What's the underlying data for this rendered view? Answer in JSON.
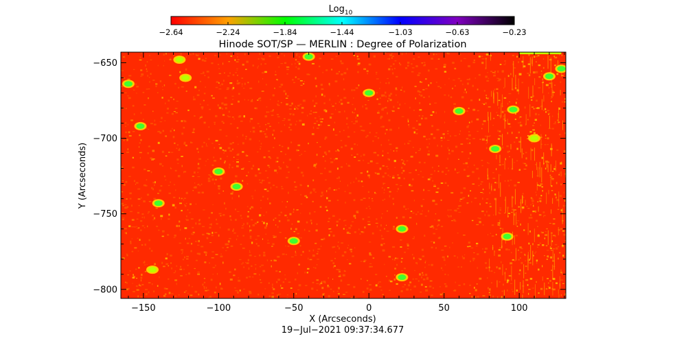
{
  "chart_data": {
    "type": "heatmap",
    "title": "Hinode SOT/SP — MERLIN : Degree of Polarization",
    "xlabel": "X (Arcseconds)",
    "ylabel": "Y (Arcseconds)",
    "xlim": [
      -165,
      131
    ],
    "ylim": [
      -806,
      -643
    ],
    "x_ticks": [
      -150,
      -100,
      -50,
      0,
      50,
      100
    ],
    "x_tick_labels": [
      "−150",
      "−100",
      "−50",
      "0",
      "50",
      "100"
    ],
    "y_ticks": [
      -650,
      -700,
      -750,
      -800
    ],
    "y_tick_labels": [
      "−650",
      "−700",
      "−750",
      "−800"
    ],
    "timestamp": "19−Jul−2021 09:37:34.677",
    "colorbar": {
      "label_main": "Log",
      "label_sub": "10",
      "min": -2.64,
      "max": -0.23,
      "ticks": [
        -2.64,
        -2.24,
        -1.84,
        -1.44,
        -1.03,
        -0.63,
        -0.23
      ],
      "tick_labels": [
        "−2.64",
        "−2.24",
        "−1.84",
        "−1.44",
        "−1.03",
        "−0.63",
        "−0.23"
      ],
      "colormap": [
        "#ff0000",
        "#ffa000",
        "#00ff00",
        "#00ffff",
        "#0000ff",
        "#8000c0",
        "#000000"
      ]
    },
    "background_color": "#ff2a00",
    "bright_patches": [
      {
        "x": -126,
        "y": -648,
        "level": "yellow-green"
      },
      {
        "x": -40,
        "y": -646,
        "level": "green"
      },
      {
        "x": -122,
        "y": -660,
        "level": "yellow-green"
      },
      {
        "x": -160,
        "y": -664,
        "level": "green"
      },
      {
        "x": 0,
        "y": -670,
        "level": "green"
      },
      {
        "x": 60,
        "y": -682,
        "level": "green"
      },
      {
        "x": 96,
        "y": -681,
        "level": "green"
      },
      {
        "x": 120,
        "y": -659,
        "level": "green"
      },
      {
        "x": 128,
        "y": -654,
        "level": "green"
      },
      {
        "x": -152,
        "y": -692,
        "level": "green"
      },
      {
        "x": -100,
        "y": -722,
        "level": "green"
      },
      {
        "x": -88,
        "y": -732,
        "level": "green"
      },
      {
        "x": -140,
        "y": -743,
        "level": "green"
      },
      {
        "x": -50,
        "y": -768,
        "level": "green"
      },
      {
        "x": 22,
        "y": -760,
        "level": "green"
      },
      {
        "x": 92,
        "y": -765,
        "level": "green"
      },
      {
        "x": 22,
        "y": -792,
        "level": "green"
      },
      {
        "x": -144,
        "y": -787,
        "level": "yellow-green"
      },
      {
        "x": 84,
        "y": -707,
        "level": "green"
      },
      {
        "x": 110,
        "y": -700,
        "level": "yellow-green"
      }
    ]
  }
}
